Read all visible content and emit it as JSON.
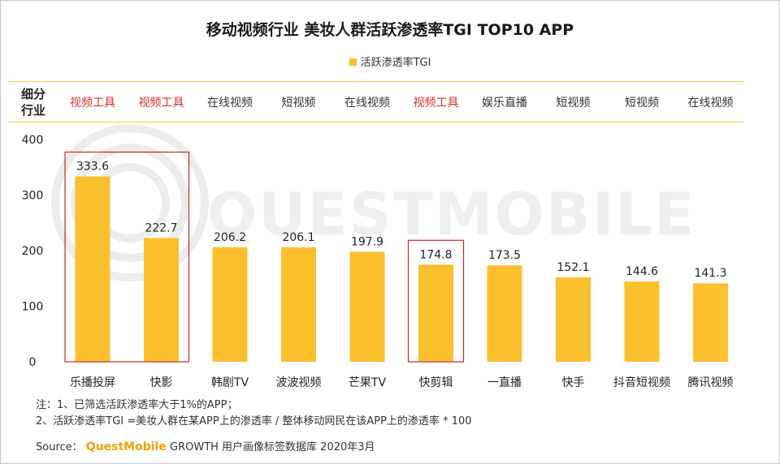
{
  "title": "移动视频行业 美妆人群活跃渗透率TGI TOP10 APP",
  "legend": {
    "label": "活跃渗透率TGI"
  },
  "category_header": {
    "line1": "细分",
    "line2": "行业"
  },
  "watermark": "QUESTMOBILE",
  "colors": {
    "bar": "#fbc02d",
    "highlight": "#c62828",
    "industry_highlight": "#d32f2f",
    "rule": "#f2c94c"
  },
  "chart_data": {
    "type": "bar",
    "title": "移动视频行业 美妆人群活跃渗透率TGI TOP10 APP",
    "xlabel": "",
    "ylabel": "",
    "ylim": [
      0,
      400
    ],
    "yticks": [
      0,
      100,
      200,
      300,
      400
    ],
    "categories": [
      "乐播投屏",
      "快影",
      "韩剧TV",
      "波波视频",
      "芒果TV",
      "快剪辑",
      "一直播",
      "快手",
      "抖音短视频",
      "腾讯视频"
    ],
    "industries": [
      "视频工具",
      "视频工具",
      "在线视频",
      "短视频",
      "在线视频",
      "视频工具",
      "娱乐直播",
      "短视频",
      "短视频",
      "在线视频"
    ],
    "highlight_industry": "视频工具",
    "series": [
      {
        "name": "活跃渗透率TGI",
        "values": [
          333.6,
          222.7,
          206.2,
          206.1,
          197.9,
          174.8,
          173.5,
          152.1,
          144.6,
          141.3
        ]
      }
    ],
    "highlight_groups": [
      [
        0,
        1
      ],
      [
        5
      ]
    ]
  },
  "notes": {
    "line1": "注：1、已筛选活跃渗透率大于1%的APP；",
    "line2": "2、活跃渗透率TGI =美妆人群在某APP上的渗透率 / 整体移动网民在该APP上的渗透率 * 100"
  },
  "source": {
    "label": "Source：",
    "brand": "QuestMobile",
    "rest": " GROWTH 用户画像标签数据库 2020年3月"
  }
}
